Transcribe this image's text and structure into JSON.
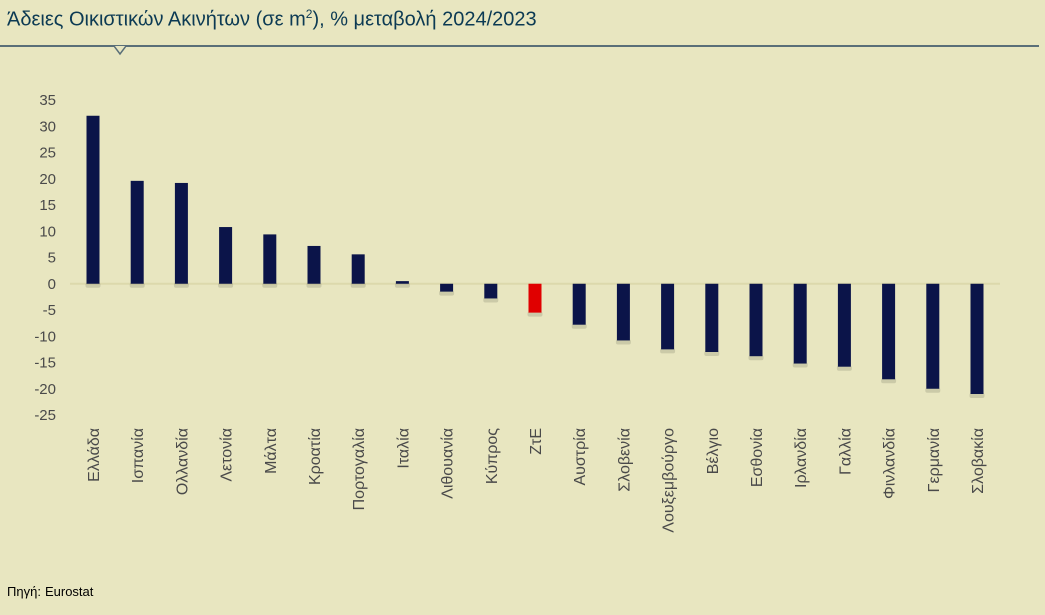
{
  "title": {
    "text_before": "Άδειες Οικιστικών Ακινήτων (σε m",
    "superscript": "2",
    "text_after": "), % μεταβολή 2024/2023"
  },
  "source": {
    "label": "Πηγή:",
    "value": "Eurostat"
  },
  "colors": {
    "background": "#e8e6c0",
    "bar": "#0b1449",
    "highlight": "#e00000",
    "title": "#0c3a53",
    "axis_text": "#4a4a4a"
  },
  "chart_data": {
    "type": "bar",
    "categories": [
      "Ελλάδα",
      "Ισπανία",
      "Ολλανδία",
      "Λετονία",
      "Μάλτα",
      "Κροατία",
      "Πορτογαλία",
      "Ιταλία",
      "Λιθουανία",
      "Κύπρος",
      "ΖτΕ",
      "Αυστρία",
      "Σλοβενία",
      "Λουξεμβούργο",
      "Βέλγιο",
      "Εσθονία",
      "Ιρλανδία",
      "Γαλλία",
      "Φινλανδία",
      "Γερμανία",
      "Σλοβακία"
    ],
    "values": [
      32,
      19.6,
      19.2,
      10.8,
      9.4,
      7.2,
      5.6,
      0.5,
      -1.5,
      -2.8,
      -5.5,
      -7.8,
      -10.8,
      -12.5,
      -13,
      -13.8,
      -15.2,
      -15.8,
      -18.2,
      -20,
      -21
    ],
    "highlight_category": "ΖτΕ",
    "ylim": [
      -25,
      35
    ],
    "yticks": [
      35,
      30,
      25,
      20,
      15,
      10,
      5,
      0,
      -5,
      -10,
      -15,
      -20,
      -25
    ],
    "xlabel": "",
    "ylabel": "",
    "legend": "none",
    "grid": false
  }
}
